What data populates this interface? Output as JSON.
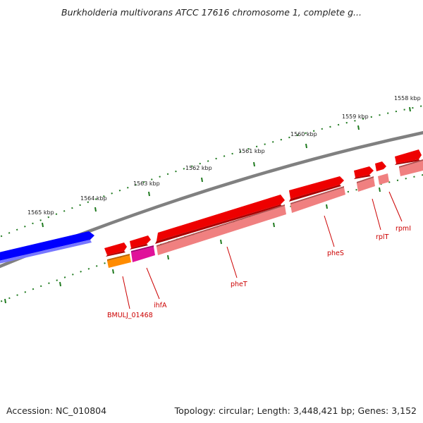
{
  "title": "Burkholderia multivorans ATCC 17616 chromosome 1, complete g...",
  "footer": {
    "accession": "Accession: NC_010804",
    "summary": "Topology: circular; Length: 3,448,421 bp; Genes: 3,152"
  },
  "scale_labels": [
    "1565 kbp",
    "1564 kbp",
    "1563 kbp",
    "1562 kbp",
    "1561 kbp",
    "1560 kbp",
    "1559 kbp",
    "1558 kbp"
  ],
  "genes": [
    {
      "label": "",
      "color": "#0000ff"
    },
    {
      "label": "BMULJ_01468",
      "color": "#ff8c00"
    },
    {
      "label": "ihfA",
      "color": "#e0129a"
    },
    {
      "label": "pheT",
      "color": "#ee0000"
    },
    {
      "label": "pheS",
      "color": "#ee0000"
    },
    {
      "label": "rplT",
      "color": "#ee0000"
    },
    {
      "label": "rpmI",
      "color": "#ee0000"
    }
  ],
  "colors": {
    "backbone": "#808080",
    "scale_ticks": "#1f7a1f",
    "cds": "#ee0000",
    "gene_pink": "#f08080",
    "label": "#cc0000"
  }
}
